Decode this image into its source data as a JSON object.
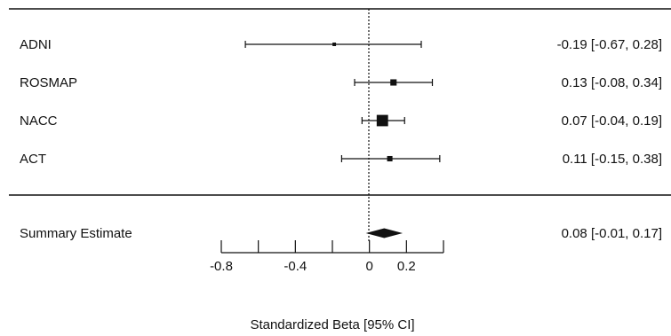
{
  "chart_data": {
    "type": "forest",
    "xlabel": "Standardized Beta [95% CI]",
    "xlim": [
      -0.8,
      0.4
    ],
    "xticks": [
      -0.8,
      -0.6,
      -0.4,
      -0.2,
      0,
      0.2,
      0.4
    ],
    "xtick_labels": [
      "-0.8",
      "",
      "-0.4",
      "",
      "0",
      "0.2",
      ""
    ],
    "reference_line": 0,
    "studies": [
      {
        "name": "ADNI",
        "estimate": -0.19,
        "lower": -0.67,
        "upper": 0.28,
        "label": "-0.19 [-0.67, 0.28]",
        "weight": 0.6
      },
      {
        "name": "ROSMAP",
        "estimate": 0.13,
        "lower": -0.08,
        "upper": 0.34,
        "label": "0.13 [-0.08, 0.34]",
        "weight": 1.8
      },
      {
        "name": "NACC",
        "estimate": 0.07,
        "lower": -0.04,
        "upper": 0.19,
        "label": "0.07 [-0.04, 0.19]",
        "weight": 4.0
      },
      {
        "name": "ACT",
        "estimate": 0.11,
        "lower": -0.15,
        "upper": 0.38,
        "label": "0.11 [-0.15, 0.38]",
        "weight": 1.4
      }
    ],
    "summary": {
      "name": "Summary Estimate",
      "estimate": 0.08,
      "lower": -0.01,
      "upper": 0.17,
      "label": "0.08 [-0.01, 0.17]"
    }
  }
}
